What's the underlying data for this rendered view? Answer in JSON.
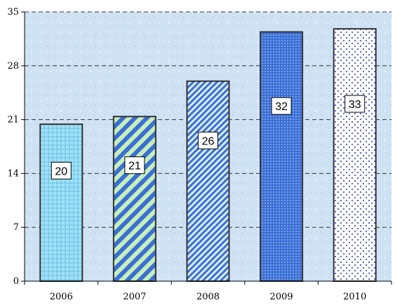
{
  "chart_data": {
    "type": "bar",
    "categories": [
      "2006",
      "2007",
      "2008",
      "2009",
      "2010"
    ],
    "values": [
      20.4,
      21.4,
      26,
      32.4,
      32.8
    ],
    "data_labels": [
      "20",
      "21",
      "26",
      "32",
      "33"
    ],
    "title": "",
    "xlabel": "",
    "ylabel": "",
    "ylim": [
      0,
      35
    ],
    "yticks": [
      "0",
      "7",
      "14",
      "21",
      "28",
      "35"
    ],
    "grid": "horizontal dashed",
    "legend": "none",
    "patterns": [
      "crosshatch-dots",
      "diagonal-stripes",
      "fine-diagonal-stripes",
      "dense-dots",
      "sparse-dots"
    ],
    "colors": {
      "plot_background": "#cfe2f4",
      "bar_2006": "#7fd0f0",
      "bar_2007": "#3b6fd6",
      "bar_2008": "#3b6fd6",
      "bar_2009": "#3b6fd6",
      "bar_2010": "#4a52d8",
      "gridline": "#333333",
      "bar_outline": "#333333"
    }
  }
}
